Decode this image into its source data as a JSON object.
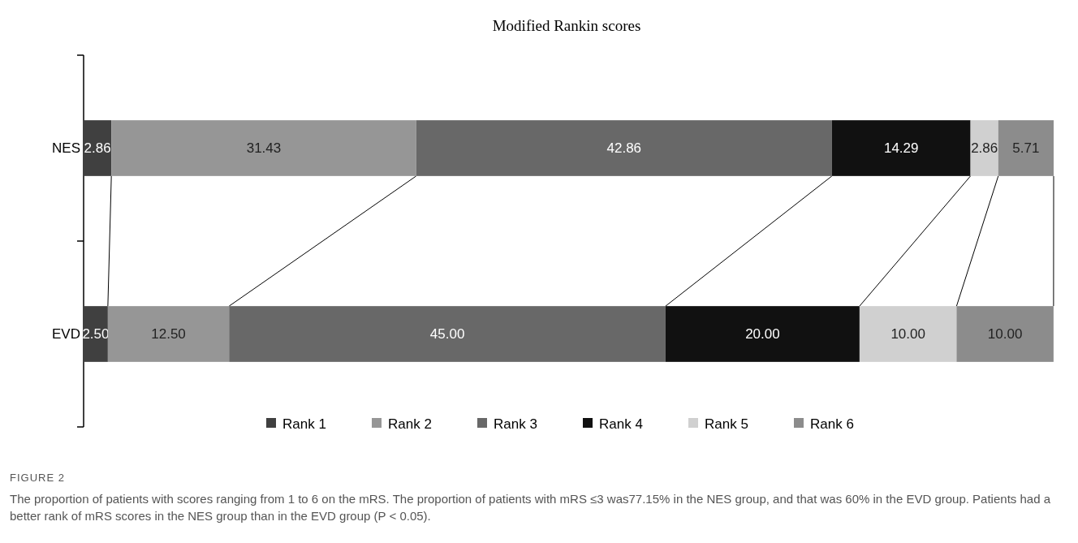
{
  "chart_data": {
    "type": "bar",
    "orientation": "horizontal",
    "stacked": true,
    "title": "Modified Rankin scores",
    "categories": [
      "NES",
      "EVD"
    ],
    "series": [
      {
        "name": "Rank 1",
        "color": "#404040",
        "values": [
          2.86,
          2.5
        ],
        "value_labels": [
          "2.86",
          "2.50"
        ]
      },
      {
        "name": "Rank 2",
        "color": "#969696",
        "values": [
          31.43,
          12.5
        ],
        "value_labels": [
          "31.43",
          "12.50"
        ]
      },
      {
        "name": "Rank 3",
        "color": "#686868",
        "values": [
          42.86,
          45
        ],
        "value_labels": [
          "42.86",
          "45.00"
        ]
      },
      {
        "name": "Rank 4",
        "color": "#111111",
        "values": [
          14.29,
          20
        ],
        "value_labels": [
          "14.29",
          "20.00"
        ]
      },
      {
        "name": "Rank 5",
        "color": "#d0d0d0",
        "values": [
          2.86,
          10
        ],
        "value_labels": [
          "2.86",
          "10.00"
        ]
      },
      {
        "name": "Rank 6",
        "color": "#8c8c8c",
        "values": [
          5.71,
          10
        ],
        "value_labels": [
          "5.71",
          "10.00"
        ]
      }
    ],
    "legend": "bottom",
    "annotations": [
      "FIGURE 2",
      "The proportion of patients with scores ranging from 1 to 6 on the mRS. The proportion of patients with mRS ≤3 was77.15% in the NES group, and that was 60% in the EVD group. Patients had a better rank of mRS scores in the NES group than in the EVD group (P < 0.05)."
    ]
  }
}
